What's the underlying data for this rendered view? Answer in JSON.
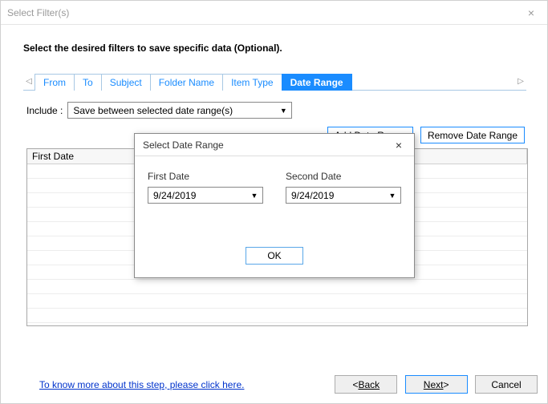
{
  "window": {
    "title": "Select Filter(s)"
  },
  "instruction": "Select the desired filters to save specific data (Optional).",
  "tabs": {
    "scroll_left": "◁",
    "scroll_right": "▷",
    "items": [
      "From",
      "To",
      "Subject",
      "Folder Name",
      "Item Type",
      "Date Range"
    ],
    "active_index": 5
  },
  "include": {
    "label": "Include :",
    "selected": "Save between selected date range(s)"
  },
  "buttons": {
    "add_range": "Add Date Range",
    "remove_range": "Remove Date Range"
  },
  "grid": {
    "columns": [
      "First Date"
    ]
  },
  "footer": {
    "help": "To know more about this step, please click here.",
    "back": "Back",
    "next": "Next",
    "cancel": "Cancel"
  },
  "modal": {
    "title": "Select Date Range",
    "first_label": "First Date",
    "second_label": "Second Date",
    "first_value": "9/24/2019",
    "second_value": "9/24/2019",
    "ok": "OK"
  },
  "colors": {
    "accent": "#1a8cff",
    "link": "#0033cc",
    "border": "#a8c8e4"
  }
}
